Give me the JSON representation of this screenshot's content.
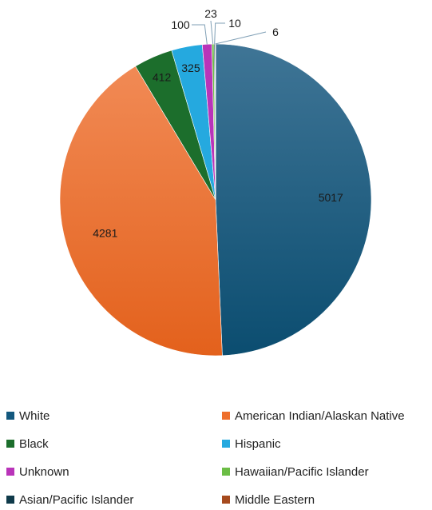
{
  "chart_data": {
    "type": "pie",
    "title": "",
    "categories": [
      "White",
      "American Indian/Alaskan Native",
      "Black",
      "Hispanic",
      "Unknown",
      "Hawaiian/Pacific Islander",
      "Asian/Pacific Islander",
      "Middle Eastern"
    ],
    "values": [
      5017,
      4281,
      412,
      325,
      100,
      23,
      10,
      6
    ],
    "colors": [
      "#13587e",
      "#ee6f2c",
      "#1c6e2c",
      "#25a9df",
      "#b934b9",
      "#6bbd45",
      "#0f3a4a",
      "#a64a1e"
    ],
    "legend_position": "bottom",
    "data_labels": [
      "5017",
      "4281",
      "412",
      "325",
      "100",
      "23",
      "10",
      "6"
    ]
  }
}
